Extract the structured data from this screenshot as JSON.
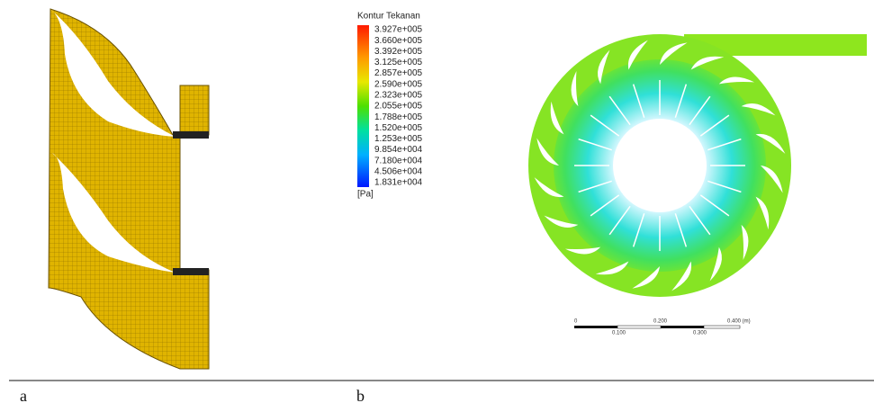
{
  "legend": {
    "title": "Kontur Tekanan",
    "labels": [
      "3.927e+005",
      "3.660e+005",
      "3.392e+005",
      "3.125e+005",
      "2.857e+005",
      "2.590e+005",
      "2.323e+005",
      "2.055e+005",
      "1.788e+005",
      "1.520e+005",
      "1.253e+005",
      "9.854e+004",
      "7.180e+004",
      "4.506e+004",
      "1.831e+004"
    ],
    "unit": "[Pa]"
  },
  "scale_bar": {
    "top": [
      "0",
      "0.200",
      "0.400 (m)"
    ],
    "bottom": [
      "0.100",
      "0.300"
    ]
  },
  "captions": [
    "a",
    "b"
  ]
}
